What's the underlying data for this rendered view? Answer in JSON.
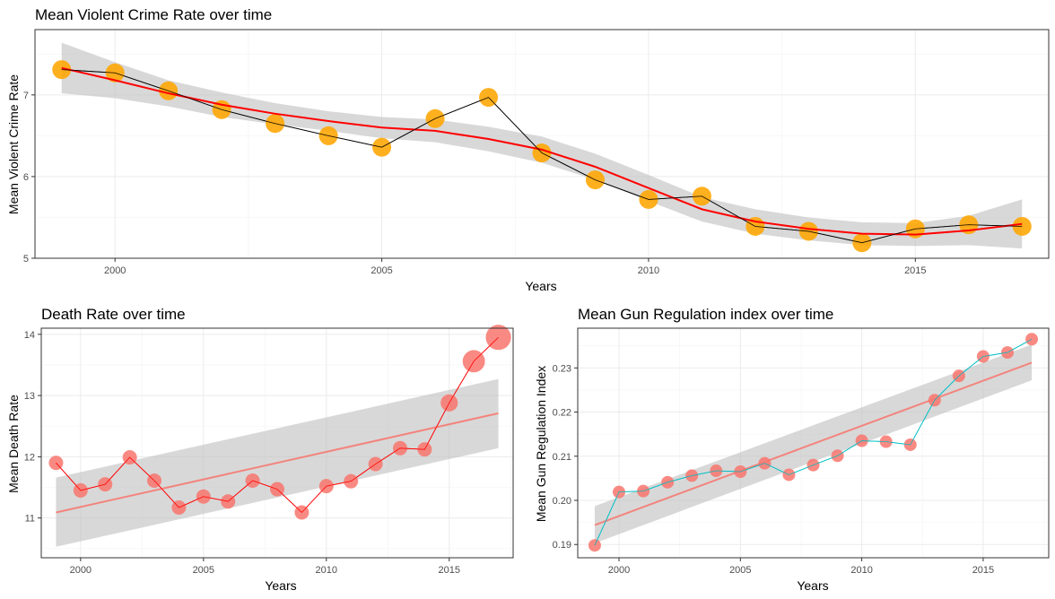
{
  "chart_data": [
    {
      "type": "scatter",
      "title": "Mean Violent Crime Rate over time",
      "xlabel": "Years",
      "ylabel": "Mean Violent Crime Rate",
      "xlim": [
        1998.5,
        2017.5
      ],
      "ylim": [
        5.0,
        7.8
      ],
      "xticks": [
        2000,
        2005,
        2010,
        2015
      ],
      "yticks": [
        5,
        6,
        7
      ],
      "grid": true,
      "legend": "none",
      "point_color": "#FFA500",
      "connect_line_color": "#000000",
      "smooth_color": "#FF0000",
      "ribbon_color": "#BEBEBE",
      "series": [
        {
          "x": [
            1999,
            2000,
            2001,
            2002,
            2003,
            2004,
            2005,
            2006,
            2007,
            2008,
            2009,
            2010,
            2011,
            2012,
            2013,
            2014,
            2015,
            2016,
            2017
          ],
          "values": [
            7.31,
            7.27,
            7.05,
            6.82,
            6.65,
            6.5,
            6.36,
            6.71,
            6.97,
            6.29,
            5.96,
            5.72,
            5.76,
            5.39,
            5.33,
            5.19,
            5.36,
            5.41,
            5.39
          ]
        }
      ],
      "smooth": {
        "x": [
          1999,
          2000,
          2001,
          2002,
          2003,
          2004,
          2005,
          2006,
          2007,
          2008,
          2009,
          2010,
          2011,
          2012,
          2013,
          2014,
          2015,
          2016,
          2017
        ],
        "y": [
          7.33,
          7.18,
          7.02,
          6.88,
          6.77,
          6.68,
          6.6,
          6.56,
          6.46,
          6.33,
          6.12,
          5.86,
          5.6,
          5.45,
          5.36,
          5.3,
          5.29,
          5.34,
          5.42
        ],
        "lower": [
          7.02,
          6.96,
          6.86,
          6.73,
          6.64,
          6.56,
          6.47,
          6.42,
          6.31,
          6.17,
          5.96,
          5.7,
          5.45,
          5.3,
          5.22,
          5.16,
          5.15,
          5.16,
          5.12
        ],
        "upper": [
          7.64,
          7.4,
          7.18,
          7.03,
          6.9,
          6.8,
          6.73,
          6.7,
          6.61,
          6.49,
          6.28,
          6.02,
          5.75,
          5.6,
          5.5,
          5.44,
          5.43,
          5.52,
          5.72
        ]
      }
    },
    {
      "type": "scatter",
      "title": "Death Rate over time",
      "xlabel": "Years",
      "ylabel": "Mean Death Rate",
      "xlim": [
        1998.4,
        2017.6
      ],
      "ylim": [
        10.35,
        14.1
      ],
      "xticks": [
        2000,
        2005,
        2010,
        2015
      ],
      "yticks": [
        11,
        12,
        13,
        14
      ],
      "grid": true,
      "legend": "none",
      "point_color": "#F8766D",
      "connect_line_color": "#FF0000",
      "smooth_color": "#F8766D",
      "ribbon_color": "#BEBEBE",
      "series": [
        {
          "x": [
            1999,
            2000,
            2001,
            2002,
            2003,
            2004,
            2005,
            2006,
            2007,
            2008,
            2009,
            2010,
            2011,
            2012,
            2013,
            2014,
            2015,
            2016,
            2017
          ],
          "values": [
            11.9,
            11.45,
            11.55,
            11.99,
            11.61,
            11.17,
            11.35,
            11.27,
            11.61,
            11.47,
            11.09,
            11.52,
            11.6,
            11.88,
            12.14,
            12.12,
            12.88,
            13.56,
            13.95
          ]
        }
      ],
      "smooth": {
        "x": [
          1999,
          2017
        ],
        "y": [
          11.09,
          12.71
        ],
        "lower": [
          10.53,
          12.14
        ],
        "upper": [
          11.66,
          13.27
        ]
      }
    },
    {
      "type": "scatter",
      "title": "Mean Gun Regulation index over time",
      "xlabel": "Years",
      "ylabel": "Mean Gun Regulation Index",
      "xlim": [
        1998.3,
        2017.7
      ],
      "ylim": [
        0.187,
        0.239
      ],
      "xticks": [
        2000,
        2005,
        2010,
        2015
      ],
      "yticks": [
        0.19,
        0.2,
        0.21,
        0.22,
        0.23
      ],
      "ytick_labels": [
        "0.19",
        "0.20",
        "0.21",
        "0.22",
        "0.23"
      ],
      "grid": true,
      "legend": "none",
      "point_color": "#F8766D",
      "connect_line_color": "#00BFC4",
      "smooth_color": "#F8766D",
      "ribbon_color": "#BEBEBE",
      "series": [
        {
          "x": [
            1999,
            2000,
            2001,
            2002,
            2003,
            2004,
            2005,
            2006,
            2007,
            2008,
            2009,
            2010,
            2011,
            2012,
            2013,
            2014,
            2015,
            2016,
            2017
          ],
          "values": [
            0.1898,
            0.2019,
            0.2021,
            0.2041,
            0.2056,
            0.2067,
            0.2065,
            0.2084,
            0.2058,
            0.208,
            0.2101,
            0.2135,
            0.2133,
            0.2126,
            0.2227,
            0.2282,
            0.2326,
            0.2335,
            0.2365
          ]
        }
      ],
      "smooth": {
        "x": [
          1999,
          2017
        ],
        "y": [
          0.1944,
          0.2312
        ],
        "lower": [
          0.1903,
          0.2272
        ],
        "upper": [
          0.1987,
          0.2353
        ]
      }
    }
  ],
  "panels": [
    {
      "title": "Mean Violent Crime Rate over time",
      "xlabel": "Years",
      "ylabel": "Mean Violent Crime Rate",
      "tick_x": [
        "2000",
        "2005",
        "2010",
        "2015"
      ],
      "tick_y": [
        "5",
        "6",
        "7"
      ]
    },
    {
      "title": "Death Rate over time",
      "xlabel": "Years",
      "ylabel": "Mean Death Rate",
      "tick_x": [
        "2000",
        "2005",
        "2010",
        "2015"
      ],
      "tick_y": [
        "11",
        "12",
        "13",
        "14"
      ]
    },
    {
      "title": "Mean Gun Regulation index over time",
      "xlabel": "Years",
      "ylabel": "Mean Gun Regulation Index",
      "tick_x": [
        "2000",
        "2005",
        "2010",
        "2015"
      ],
      "tick_y": [
        "0.19",
        "0.20",
        "0.21",
        "0.22",
        "0.23"
      ]
    }
  ]
}
